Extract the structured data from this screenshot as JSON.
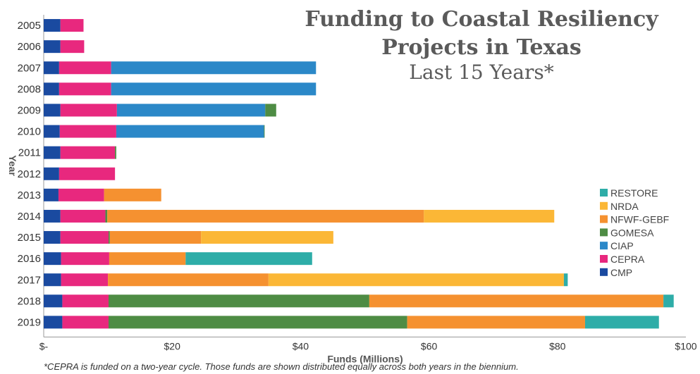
{
  "chart_data": {
    "type": "bar",
    "orientation": "horizontal",
    "stacked": true,
    "title": "Funding to Coastal Resiliency Projects in Texas",
    "subtitle": "Last 15 Years*",
    "xlabel": "Funds (Millions)",
    "ylabel": "Year",
    "xlim": [
      0,
      100
    ],
    "xticks": [
      0,
      20,
      40,
      60,
      80,
      100
    ],
    "xtick_labels": [
      "$-",
      "$20",
      "$40",
      "$60",
      "$80",
      "$100"
    ],
    "categories": [
      "2005",
      "2006",
      "2007",
      "2008",
      "2009",
      "2010",
      "2011",
      "2012",
      "2013",
      "2014",
      "2015",
      "2016",
      "2017",
      "2018",
      "2019"
    ],
    "series": [
      {
        "name": "CMP",
        "color": "#1a4aa0",
        "values": [
          2.6,
          2.6,
          2.4,
          2.4,
          2.6,
          2.5,
          2.6,
          2.4,
          2.3,
          2.6,
          2.6,
          2.7,
          2.7,
          2.9,
          2.9
        ]
      },
      {
        "name": "CEPRA",
        "color": "#e8287e",
        "values": [
          3.6,
          3.7,
          8.1,
          8.1,
          8.8,
          8.8,
          8.5,
          8.7,
          7.1,
          7.0,
          7.5,
          7.5,
          7.3,
          7.2,
          7.2
        ]
      },
      {
        "name": "CIAP",
        "color": "#2b88c8",
        "values": [
          0,
          0,
          31.9,
          31.9,
          23.1,
          23.0,
          0,
          0,
          0,
          0,
          0,
          0,
          0,
          0,
          0
        ]
      },
      {
        "name": "GOMESA",
        "color": "#4e8c44",
        "values": [
          0,
          0,
          0,
          0,
          1.7,
          0.1,
          0.2,
          0,
          0,
          0.3,
          0.2,
          0,
          0,
          40.6,
          46.5
        ]
      },
      {
        "name": "NFWF-GEBF",
        "color": "#f59130",
        "values": [
          0,
          0,
          0,
          0,
          0,
          0,
          0,
          0,
          8.9,
          49.3,
          14.2,
          11.9,
          25.0,
          45.8,
          27.7
        ]
      },
      {
        "name": "NRDA",
        "color": "#fbb736",
        "values": [
          0,
          0,
          0,
          0,
          0,
          0,
          0,
          0,
          0,
          20.3,
          20.6,
          0,
          46.0,
          0,
          0
        ]
      },
      {
        "name": "RESTORE",
        "color": "#2eada8",
        "values": [
          0,
          0,
          0,
          0,
          0,
          0,
          0,
          0,
          0,
          0,
          0,
          19.7,
          0.6,
          1.6,
          11.5
        ]
      }
    ],
    "legend": {
      "position": "right",
      "order": [
        "RESTORE",
        "NRDA",
        "NFWF-GEBF",
        "GOMESA",
        "CIAP",
        "CEPRA",
        "CMP"
      ]
    },
    "grid": false
  },
  "footnote": "*CEPRA is funded on a two-year cycle. Those funds are shown distributed equally across both years in the biennium."
}
